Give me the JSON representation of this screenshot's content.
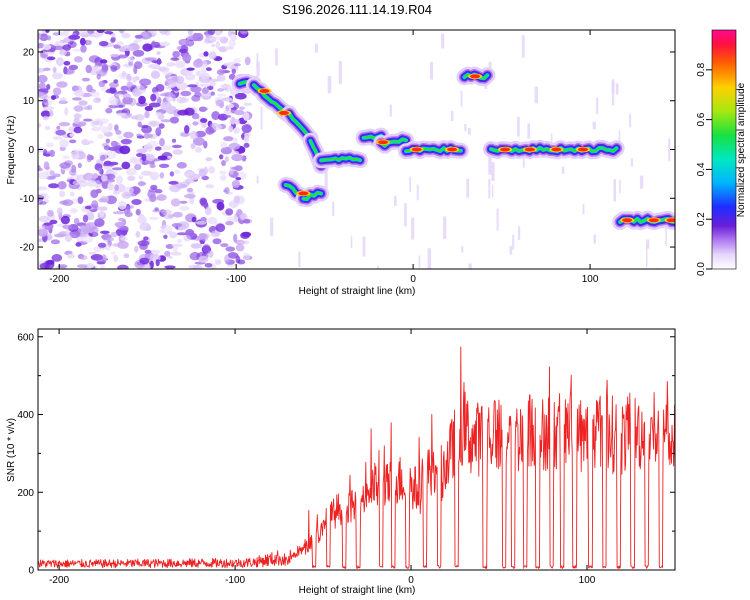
{
  "chart_data": [
    {
      "type": "heatmap",
      "title": "S196.2026.111.14.19.R04",
      "xlabel": "Height of straight line (km)",
      "ylabel": "Frequency (Hz)",
      "xlim": [
        -212,
        148
      ],
      "ylim": [
        -24.5,
        24.5
      ],
      "xticks": [
        -200,
        -100,
        0,
        100
      ],
      "yticks": [
        -20,
        -10,
        0,
        10,
        20
      ],
      "colorbar": {
        "label": "Normalized spectral amplitude",
        "range": [
          0.0,
          0.96
        ],
        "ticks": [
          "0.0",
          "0.2",
          "0.4",
          "0.6",
          "0.8"
        ],
        "colors": [
          "#ffffff",
          "#d7b6f5",
          "#a06ae6",
          "#6a1fd8",
          "#2222ff",
          "#00c8ff",
          "#00e6a0",
          "#2be02b",
          "#d8ec10",
          "#ffb000",
          "#ff3010",
          "#ff0a80"
        ]
      },
      "noise_region": {
        "x_range": [
          -212,
          -93
        ],
        "level": 0.2
      },
      "ridge_segments": [
        {
          "x_start": -98,
          "x_end": -90,
          "f_start": 13.5,
          "f_end": 13.5
        },
        {
          "x_start": -90,
          "x_end": -70,
          "f_start": 13,
          "f_end": 7
        },
        {
          "x_start": -70,
          "x_end": -58,
          "f_start": 7,
          "f_end": 2
        },
        {
          "x_start": -58,
          "x_end": -52,
          "f_start": 2,
          "f_end": -3
        },
        {
          "x_start": -72,
          "x_end": -62,
          "f_start": -7,
          "f_end": -10
        },
        {
          "x_start": -62,
          "x_end": -52,
          "f_start": -10,
          "f_end": -9
        },
        {
          "x_start": -52,
          "x_end": -30,
          "f_start": -2,
          "f_end": -2
        },
        {
          "x_start": -28,
          "x_end": -18,
          "f_start": 2,
          "f_end": 3
        },
        {
          "x_start": -18,
          "x_end": -4,
          "f_start": 1,
          "f_end": 2
        },
        {
          "x_start": -4,
          "x_end": 27,
          "f_start": 0,
          "f_end": 0
        },
        {
          "x_start": 29,
          "x_end": 42,
          "f_start": 15,
          "f_end": 15
        },
        {
          "x_start": 44,
          "x_end": 115,
          "f_start": 0,
          "f_end": 0
        },
        {
          "x_start": 117,
          "x_end": 148,
          "f_start": -14.5,
          "f_end": -14.5
        }
      ],
      "ridge_peaks": [
        {
          "x": -84,
          "f": 12
        },
        {
          "x": -73,
          "f": 7.5
        },
        {
          "x": -62,
          "f": -9
        },
        {
          "x": -17,
          "f": 1.5
        },
        {
          "x": 2,
          "f": 0
        },
        {
          "x": 22,
          "f": 0
        },
        {
          "x": 35,
          "f": 15
        },
        {
          "x": 52,
          "f": 0
        },
        {
          "x": 66,
          "f": 0
        },
        {
          "x": 81,
          "f": 0
        },
        {
          "x": 96,
          "f": 0
        },
        {
          "x": 121,
          "f": -14.5
        },
        {
          "x": 136,
          "f": -14.5
        },
        {
          "x": 146,
          "f": -14.5
        }
      ]
    },
    {
      "type": "line",
      "xlabel": "Height of straight line (km)",
      "ylabel": "SNR (10 * v/v)",
      "xlim": [
        -212,
        150
      ],
      "ylim": [
        0,
        620
      ],
      "xticks": [
        -200,
        -100,
        0,
        100
      ],
      "yticks": [
        0,
        200,
        400,
        600
      ],
      "series": [
        {
          "name": "SNR",
          "color": "#ee2222",
          "x": [
            -212,
            -180,
            -150,
            -120,
            -100,
            -90,
            -80,
            -75,
            -70,
            -65,
            -60,
            -55,
            -50,
            -45,
            -40,
            -35,
            -30,
            -25,
            -20,
            -15,
            -10,
            -5,
            0,
            5,
            10,
            15,
            20,
            25,
            30,
            35,
            40,
            45,
            50,
            55,
            60,
            65,
            70,
            75,
            80,
            85,
            90,
            95,
            100,
            105,
            110,
            115,
            120,
            125,
            130,
            135,
            140,
            145,
            150
          ],
          "y": [
            18,
            18,
            19,
            20,
            20,
            22,
            30,
            35,
            25,
            60,
            70,
            110,
            130,
            180,
            210,
            200,
            220,
            260,
            280,
            270,
            290,
            300,
            280,
            260,
            320,
            300,
            350,
            420,
            470,
            430,
            440,
            460,
            450,
            470,
            440,
            460,
            470,
            450,
            480,
            460,
            470,
            460,
            450,
            470,
            460,
            450,
            440,
            450,
            460,
            450,
            450,
            440,
            430
          ],
          "dropouts": [
            -55,
            -47,
            -38,
            -30,
            -17,
            -10,
            -2,
            8,
            16,
            26,
            42,
            53,
            58,
            65,
            72,
            80,
            86,
            93,
            102,
            110,
            118,
            126,
            134,
            142
          ]
        }
      ]
    }
  ]
}
